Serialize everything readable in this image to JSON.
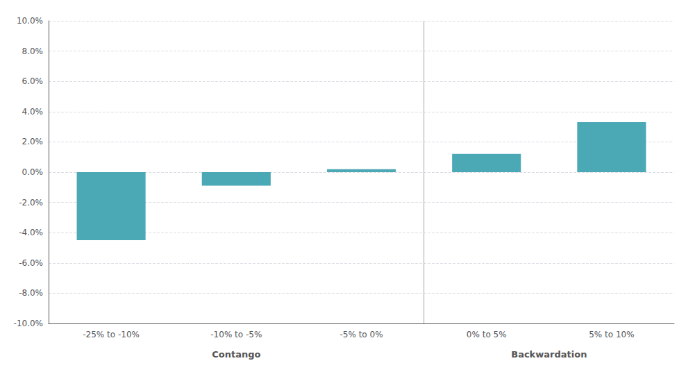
{
  "chart_data": {
    "type": "bar",
    "categories": [
      "-25% to -10%",
      "-10% to -5%",
      "-5% to 0%",
      "0% to 5%",
      "5% to 10%"
    ],
    "values": [
      -4.5,
      -0.9,
      0.2,
      1.2,
      3.3
    ],
    "color": "#4ba8b5",
    "ylim": [
      -10.0,
      10.0
    ],
    "yticks": [
      {
        "value": -10.0,
        "label": "-10.0%"
      },
      {
        "value": -8.0,
        "label": "-8.0%"
      },
      {
        "value": -6.0,
        "label": "-6.0%"
      },
      {
        "value": -4.0,
        "label": "-4.0%"
      },
      {
        "value": -2.0,
        "label": "-2.0%"
      },
      {
        "value": 0.0,
        "label": "0.0%"
      },
      {
        "value": 2.0,
        "label": "2.0%"
      },
      {
        "value": 4.0,
        "label": "4.0%"
      },
      {
        "value": 6.0,
        "label": "6.0%"
      },
      {
        "value": 8.0,
        "label": "8.0%"
      },
      {
        "value": 10.0,
        "label": "10.0%"
      }
    ],
    "grid": true,
    "annotations": [
      {
        "text": "Contango",
        "from": "-25% to -10%",
        "to": "-5% to 0%"
      },
      {
        "text": "Backwardation",
        "from": "0% to 5%",
        "to": "5% to 10%"
      }
    ]
  }
}
